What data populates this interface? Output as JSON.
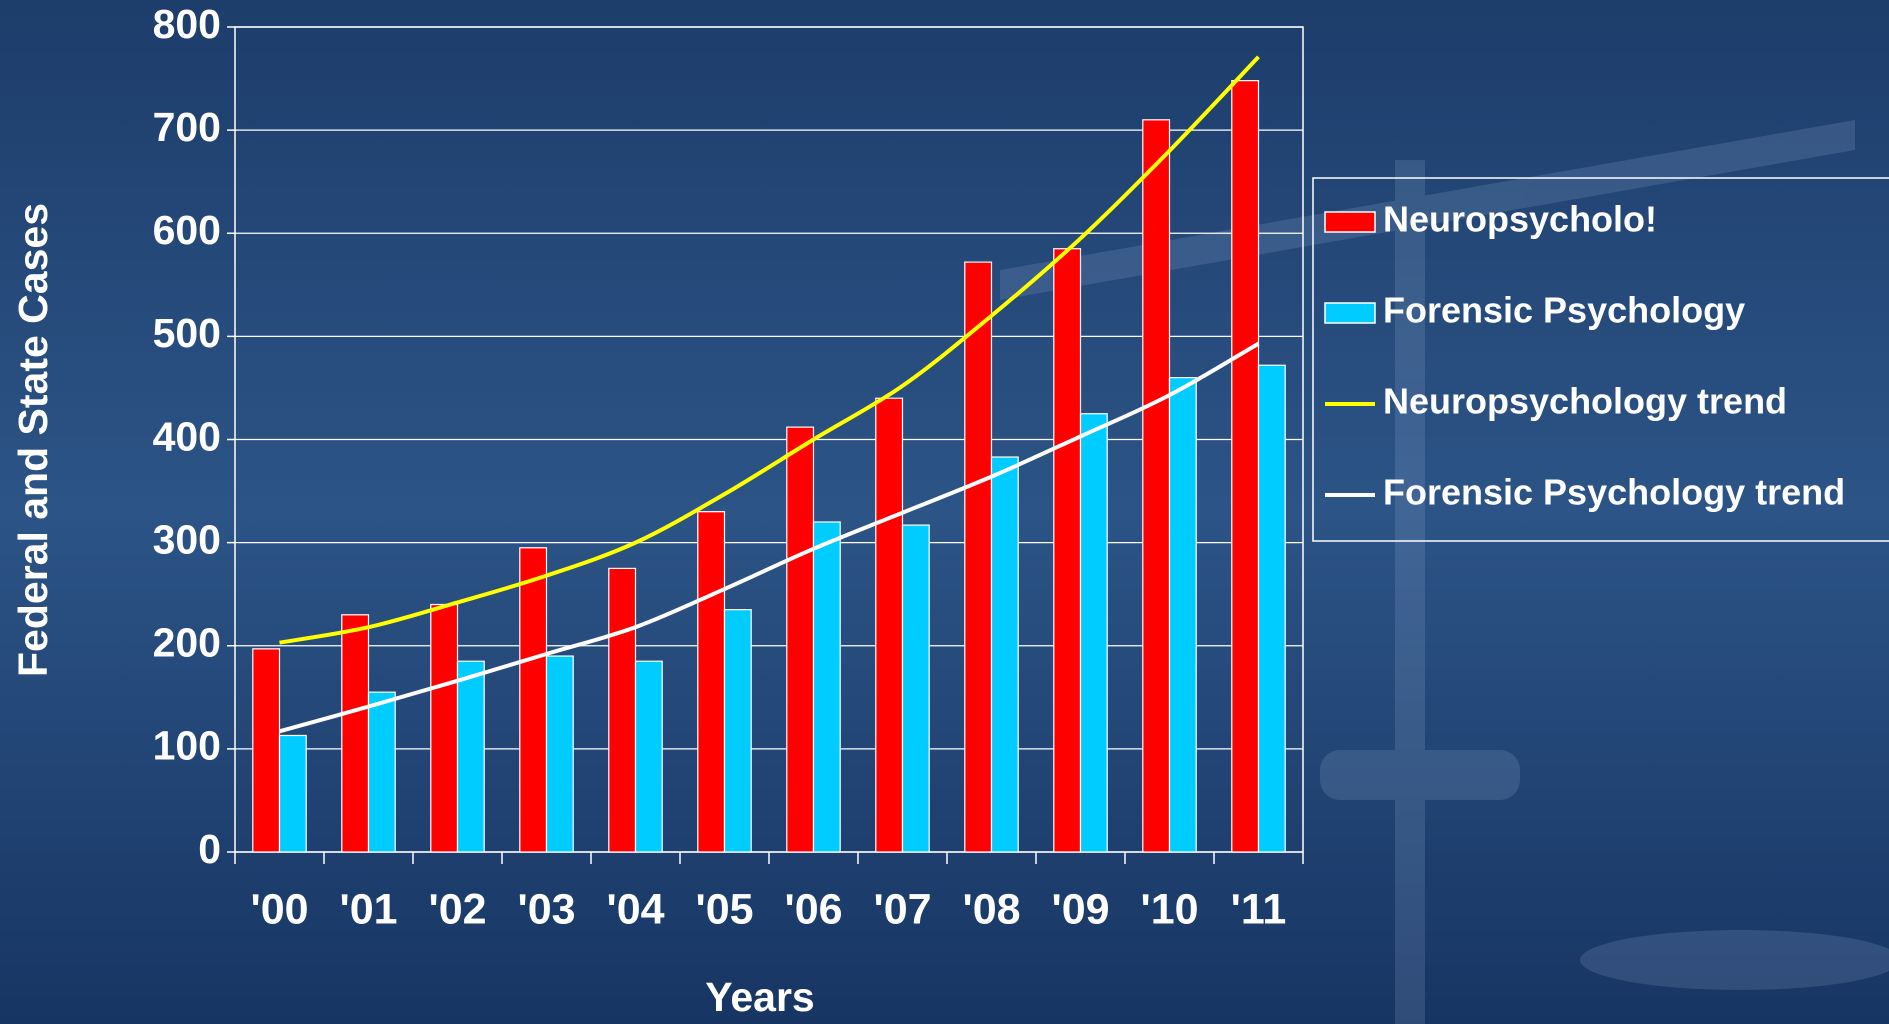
{
  "chart_data": {
    "type": "bar",
    "y_label": "Federal and State Cases",
    "x_label": "Years",
    "categories": [
      "'00",
      "'01",
      "'02",
      "'03",
      "'04",
      "'05",
      "'06",
      "'07",
      "'08",
      "'09",
      "'10",
      "'11"
    ],
    "series": [
      {
        "name": "Neuropsycholo!",
        "color": "#ff0000",
        "type": "bar",
        "values": [
          197,
          230,
          240,
          295,
          275,
          330,
          412,
          440,
          572,
          585,
          710,
          748
        ]
      },
      {
        "name": "Forensic Psychology",
        "color": "#00ccff",
        "type": "bar",
        "values": [
          113,
          155,
          185,
          190,
          185,
          235,
          320,
          317,
          383,
          425,
          460,
          472
        ]
      },
      {
        "name": "Neuropsychology trend",
        "color": "#ffff00",
        "type": "line",
        "values": [
          203,
          218,
          242,
          268,
          300,
          347,
          400,
          452,
          520,
          595,
          680,
          771
        ]
      },
      {
        "name": "Forensic Psychology trend",
        "color": "#ffffff",
        "type": "line",
        "values": [
          117,
          141,
          166,
          192,
          218,
          255,
          294,
          329,
          364,
          403,
          443,
          493
        ]
      }
    ],
    "ylim": [
      0,
      800
    ],
    "yticks": [
      0,
      100,
      200,
      300,
      400,
      500,
      600,
      700,
      800
    ],
    "grid": true,
    "legend": "right"
  }
}
